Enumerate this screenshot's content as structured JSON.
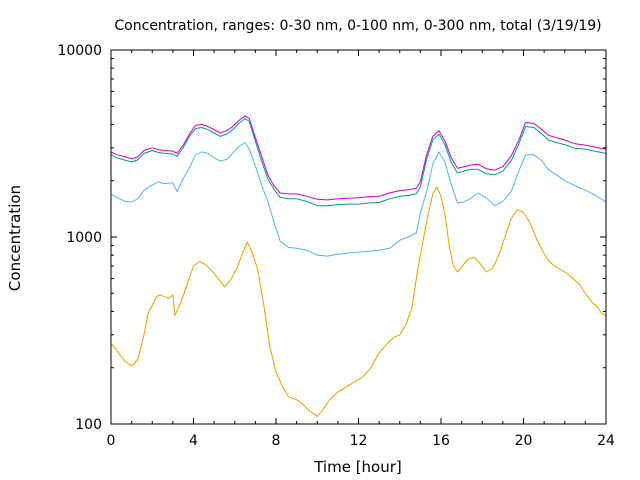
{
  "chart_data": {
    "type": "line",
    "title": "Concentration, ranges: 0-30 nm, 0-100 nm, 0-300 nm, total (3/19/19)",
    "xlabel": "Time [hour]",
    "ylabel": "Concentration",
    "xlim": [
      0,
      24
    ],
    "ylim": [
      100,
      10000
    ],
    "yscale": "log",
    "grid": false,
    "legend": "none",
    "x_ticks": [
      "0",
      "4",
      "8",
      "12",
      "16",
      "20",
      "24"
    ],
    "y_ticks": [
      "100",
      "1000",
      "10000"
    ],
    "series": [
      {
        "color": "#e69f00",
        "x": [
          0,
          0.3,
          0.7,
          1.0,
          1.3,
          1.6,
          1.8,
          2.0,
          2.2,
          2.4,
          2.6,
          2.8,
          3.0,
          3.1,
          3.4,
          3.7,
          4.0,
          4.3,
          4.6,
          5.0,
          5.3,
          5.5,
          5.8,
          6.1,
          6.4,
          6.6,
          6.8,
          7.1,
          7.4,
          7.7,
          8.0,
          8.3,
          8.6,
          9.0,
          9.3,
          9.6,
          10.0,
          10.3,
          10.6,
          11.0,
          11.4,
          11.8,
          12.2,
          12.6,
          13.0,
          13.4,
          13.7,
          14.0,
          14.3,
          14.6,
          14.8,
          15.0,
          15.2,
          15.4,
          15.6,
          15.8,
          16.0,
          16.2,
          16.4,
          16.6,
          16.8,
          17.0,
          17.3,
          17.6,
          17.9,
          18.2,
          18.5,
          18.8,
          19.1,
          19.4,
          19.7,
          20.0,
          20.3,
          20.6,
          20.9,
          21.2,
          21.5,
          21.8,
          22.1,
          22.4,
          22.7,
          23.0,
          23.3,
          23.6,
          23.8,
          24.0
        ],
        "values": [
          270,
          245,
          215,
          205,
          220,
          300,
          390,
          430,
          480,
          490,
          480,
          470,
          490,
          380,
          450,
          560,
          700,
          740,
          710,
          640,
          580,
          540,
          590,
          680,
          830,
          940,
          850,
          680,
          440,
          260,
          190,
          160,
          140,
          135,
          128,
          118,
          110,
          120,
          135,
          148,
          158,
          168,
          178,
          200,
          240,
          270,
          290,
          300,
          340,
          420,
          600,
          800,
          1050,
          1350,
          1700,
          1850,
          1650,
          1300,
          900,
          700,
          650,
          690,
          760,
          780,
          720,
          650,
          680,
          800,
          1000,
          1250,
          1400,
          1350,
          1200,
          1000,
          850,
          750,
          700,
          670,
          640,
          600,
          560,
          500,
          450,
          420,
          390,
          380
        ]
      },
      {
        "color": "#56b4e9",
        "x": [
          0,
          0.3,
          0.7,
          1.0,
          1.3,
          1.6,
          2.0,
          2.3,
          2.6,
          3.0,
          3.2,
          3.5,
          3.8,
          4.1,
          4.4,
          4.7,
          5.0,
          5.3,
          5.6,
          5.9,
          6.2,
          6.5,
          6.7,
          7.0,
          7.3,
          7.6,
          7.9,
          8.2,
          8.6,
          9.0,
          9.5,
          10.0,
          10.5,
          11.0,
          11.5,
          12.0,
          12.5,
          13.0,
          13.5,
          14.0,
          14.4,
          14.8,
          15.0,
          15.3,
          15.6,
          15.9,
          16.2,
          16.5,
          16.8,
          17.1,
          17.4,
          17.8,
          18.2,
          18.6,
          19.0,
          19.4,
          19.8,
          20.1,
          20.5,
          20.9,
          21.2,
          21.6,
          22.0,
          22.5,
          23.0,
          23.5,
          24.0
        ],
        "values": [
          1700,
          1620,
          1550,
          1540,
          1600,
          1780,
          1900,
          1970,
          1930,
          1950,
          1750,
          2050,
          2350,
          2750,
          2850,
          2800,
          2650,
          2550,
          2600,
          2800,
          3050,
          3200,
          2950,
          2400,
          1900,
          1550,
          1200,
          950,
          880,
          870,
          850,
          800,
          790,
          810,
          820,
          830,
          840,
          850,
          870,
          960,
          1000,
          1050,
          1350,
          1750,
          2450,
          2850,
          2500,
          1900,
          1520,
          1540,
          1600,
          1720,
          1620,
          1470,
          1550,
          1750,
          2300,
          2750,
          2750,
          2550,
          2300,
          2150,
          2000,
          1880,
          1780,
          1670,
          1540
        ]
      },
      {
        "color": "#009e73",
        "x": [
          0,
          0.3,
          0.7,
          1.0,
          1.3,
          1.6,
          2.0,
          2.3,
          2.6,
          3.0,
          3.2,
          3.5,
          3.8,
          4.1,
          4.4,
          4.7,
          5.0,
          5.3,
          5.6,
          5.9,
          6.2,
          6.5,
          6.7,
          7.0,
          7.3,
          7.6,
          7.9,
          8.2,
          8.6,
          9.0,
          9.5,
          10.0,
          10.5,
          11.0,
          11.5,
          12.0,
          12.5,
          13.0,
          13.5,
          14.0,
          14.4,
          14.8,
          15.0,
          15.3,
          15.6,
          15.9,
          16.2,
          16.5,
          16.8,
          17.1,
          17.4,
          17.8,
          18.2,
          18.6,
          19.0,
          19.4,
          19.8,
          20.1,
          20.5,
          20.9,
          21.2,
          21.6,
          22.0,
          22.5,
          23.0,
          23.5,
          24.0
        ],
        "values": [
          2750,
          2650,
          2570,
          2520,
          2580,
          2800,
          2900,
          2830,
          2800,
          2780,
          2700,
          3000,
          3450,
          3800,
          3850,
          3750,
          3600,
          3450,
          3550,
          3750,
          4050,
          4300,
          4150,
          3250,
          2550,
          2050,
          1800,
          1630,
          1600,
          1600,
          1550,
          1470,
          1470,
          1490,
          1500,
          1500,
          1520,
          1530,
          1600,
          1650,
          1670,
          1700,
          1850,
          2600,
          3300,
          3550,
          3100,
          2500,
          2200,
          2250,
          2300,
          2300,
          2180,
          2150,
          2250,
          2550,
          3200,
          3900,
          3850,
          3550,
          3300,
          3200,
          3120,
          2980,
          2950,
          2870,
          2800
        ]
      },
      {
        "color": "#cc00cc",
        "x": [
          0,
          0.3,
          0.7,
          1.0,
          1.3,
          1.6,
          2.0,
          2.3,
          2.6,
          3.0,
          3.2,
          3.5,
          3.8,
          4.1,
          4.4,
          4.7,
          5.0,
          5.3,
          5.6,
          5.9,
          6.2,
          6.5,
          6.7,
          7.0,
          7.3,
          7.6,
          7.9,
          8.2,
          8.6,
          9.0,
          9.5,
          10.0,
          10.5,
          11.0,
          11.5,
          12.0,
          12.5,
          13.0,
          13.5,
          14.0,
          14.4,
          14.8,
          15.0,
          15.3,
          15.6,
          15.9,
          16.2,
          16.5,
          16.8,
          17.1,
          17.4,
          17.8,
          18.2,
          18.6,
          19.0,
          19.4,
          19.8,
          20.1,
          20.5,
          20.9,
          21.2,
          21.6,
          22.0,
          22.5,
          23.0,
          23.5,
          24.0
        ],
        "values": [
          2850,
          2750,
          2680,
          2620,
          2680,
          2900,
          3000,
          2930,
          2900,
          2880,
          2800,
          3100,
          3550,
          3950,
          4000,
          3900,
          3750,
          3600,
          3700,
          3900,
          4200,
          4450,
          4300,
          3400,
          2700,
          2150,
          1880,
          1720,
          1700,
          1700,
          1650,
          1590,
          1580,
          1600,
          1610,
          1620,
          1640,
          1650,
          1720,
          1770,
          1790,
          1820,
          1980,
          2750,
          3450,
          3700,
          3250,
          2650,
          2330,
          2370,
          2420,
          2450,
          2320,
          2280,
          2380,
          2700,
          3350,
          4100,
          4050,
          3750,
          3500,
          3400,
          3300,
          3150,
          3100,
          3020,
          2950
        ]
      }
    ]
  }
}
